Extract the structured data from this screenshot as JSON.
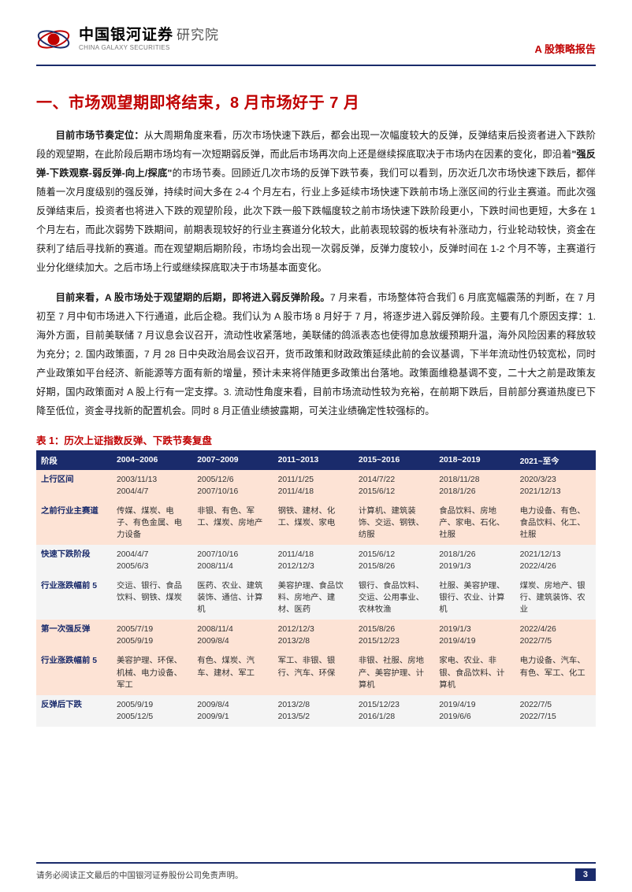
{
  "header": {
    "brand_cn": "中国银河证券",
    "brand_dept": "研究院",
    "brand_en": "CHINA GALAXY SECURITIES",
    "doc_type": "A 股策略报告",
    "logo_colors": {
      "orbit": "#c00000",
      "planet": "#c00000",
      "ring": "#1a2b6b"
    }
  },
  "section_title": "一、市场观望期即将结束，8 月市场好于 7 月",
  "paragraphs": [
    {
      "lead": "目前市场节奏定位：",
      "body_before": "从大周期角度来看，历次市场快速下跌后，都会出现一次幅度较大的反弹，反弹结束后投资者进入下跌阶段的观望期，在此阶段后期市场均有一次短期弱反弹，而此后市场再次向上还是继续探底取决于市场内在因素的变化，即沿着",
      "quote": "\"强反弹-下跌观察-弱反弹-向上/探底\"",
      "body_after": "的市场节奏。回顾近几次市场的反弹下跌节奏，我们可以看到，历次近几次市场快速下跌后，都伴随着一次月度级别的强反弹，持续时间大多在 2-4 个月左右，行业上多延续市场快速下跌前市场上涨区间的行业主赛道。而此次强反弹结束后，投资者也将进入下跌的观望阶段，此次下跌一般下跌幅度较之前市场快速下跌阶段更小，下跌时间也更短，大多在 1 个月左右，而此次弱势下跌期间，前期表现较好的行业主赛道分化较大，此前表现较弱的板块有补涨动力，行业轮动较快，资金在获利了结后寻找新的赛道。而在观望期后期阶段，市场均会出现一次弱反弹，反弹力度较小，反弹时间在 1-2 个月不等，主赛道行业分化继续加大。之后市场上行或继续探底取决于市场基本面变化。"
    },
    {
      "lead": "目前来看，A 股市场处于观望期的后期，即将进入弱反弹阶段。",
      "body_before": "",
      "quote": "",
      "body_after": "7 月来看，市场整体符合我们 6 月底宽幅震荡的判断，在 7 月初至 7 月中旬市场进入下行通道，此后企稳。我们认为 A 股市场 8 月好于 7 月，将逐步进入弱反弹阶段。主要有几个原因支撑：1. 海外方面，目前美联储 7 月议息会议召开，流动性收紧落地，美联储的鸽派表态也使得加息放缓预期升温，海外风险因素的释放较为充分；2. 国内政策面，7 月 28 日中央政治局会议召开，货币政策和财政政策延续此前的会议基调，下半年流动性仍较宽松，同时产业政策如平台经济、新能源等方面有新的增量，预计未来将伴随更多政策出台落地。政策面维稳基调不变，二十大之前是政策友好期，国内政策面对 A 股上行有一定支撑。3. 流动性角度来看，目前市场流动性较为充裕，在前期下跌后，目前部分赛道热度已下降至低位，资金寻找新的配置机会。同时 8 月正值业绩披露期，可关注业绩确定性较强标的。"
    }
  ],
  "table": {
    "caption": "表 1：历次上证指数反弹、下跌节奏复盘",
    "header": [
      "阶段",
      "2004~2006",
      "2007~2009",
      "2011~2013",
      "2015~2016",
      "2018~2019",
      "2021~至今"
    ],
    "groups": [
      {
        "style": "a",
        "rows": [
          {
            "label": "上行区间",
            "cells": [
              "2003/11/13\n2004/4/7",
              "2005/12/6\n2007/10/16",
              "2011/1/25\n2011/4/18",
              "2014/7/22\n2015/6/12",
              "2018/11/28\n2018/1/26",
              "2020/3/23\n2021/12/13"
            ]
          },
          {
            "label": "之前行业主赛道",
            "cells": [
              "传媒、煤炭、电子、有色金属、电力设备",
              "非银、有色、军工、煤炭、房地产",
              "钢铁、建材、化工、煤炭、家电",
              "计算机、建筑装饰、交运、钢铁、纺服",
              "食品饮料、房地产、家电、石化、社服",
              "电力设备、有色、食品饮料、化工、社服"
            ]
          }
        ]
      },
      {
        "style": "b",
        "rows": [
          {
            "label": "快速下跌阶段",
            "cells": [
              "2004/4/7\n2005/6/3",
              "2007/10/16\n2008/11/4",
              "2011/4/18\n2012/12/3",
              "2015/6/12\n2015/8/26",
              "2018/1/26\n2019/1/3",
              "2021/12/13\n2022/4/26"
            ]
          },
          {
            "label": "行业涨跌幅前 5",
            "cells": [
              "交运、银行、食品饮料、钢铁、煤炭",
              "医药、农业、建筑装饰、通信、计算机",
              "美容护理、食品饮料、房地产、建材、医药",
              "银行、食品饮料、交运、公用事业、农林牧渔",
              "社服、美容护理、银行、农业、计算机",
              "煤炭、房地产、银行、建筑装饰、农业"
            ]
          }
        ]
      },
      {
        "style": "a",
        "rows": [
          {
            "label": "第一次强反弹",
            "cells": [
              "2005/7/19\n2005/9/19",
              "2008/11/4\n2009/8/4",
              "2012/12/3\n2013/2/8",
              "2015/8/26\n2015/12/23",
              "2019/1/3\n2019/4/19",
              "2022/4/26\n2022/7/5"
            ]
          },
          {
            "label": "行业涨跌幅前 5",
            "cells": [
              "美容护理、环保、机械、电力设备、军工",
              "有色、煤炭、汽车、建材、军工",
              "军工、非银、银行、汽车、环保",
              "非银、社服、房地产、美容护理、计算机",
              "家电、农业、非银、食品饮料、计算机",
              "电力设备、汽车、有色、军工、化工"
            ]
          }
        ]
      },
      {
        "style": "b",
        "rows": [
          {
            "label": "反弹后下跌",
            "cells": [
              "2005/9/19\n2005/12/5",
              "2009/8/4\n2009/9/1",
              "2013/2/8\n2013/5/2",
              "2015/12/23\n2016/1/28",
              "2019/4/19\n2019/6/6",
              "2022/7/5\n2022/7/15"
            ]
          }
        ]
      }
    ]
  },
  "footer": {
    "disclaimer": "请务必阅读正文最后的中国银河证券股份公司免责声明。",
    "page": "3"
  },
  "colors": {
    "navy": "#1a2b6b",
    "red": "#c00000",
    "row_a": "#fde3d5",
    "row_b": "#f4f4f4",
    "text": "#1a1a1a"
  }
}
